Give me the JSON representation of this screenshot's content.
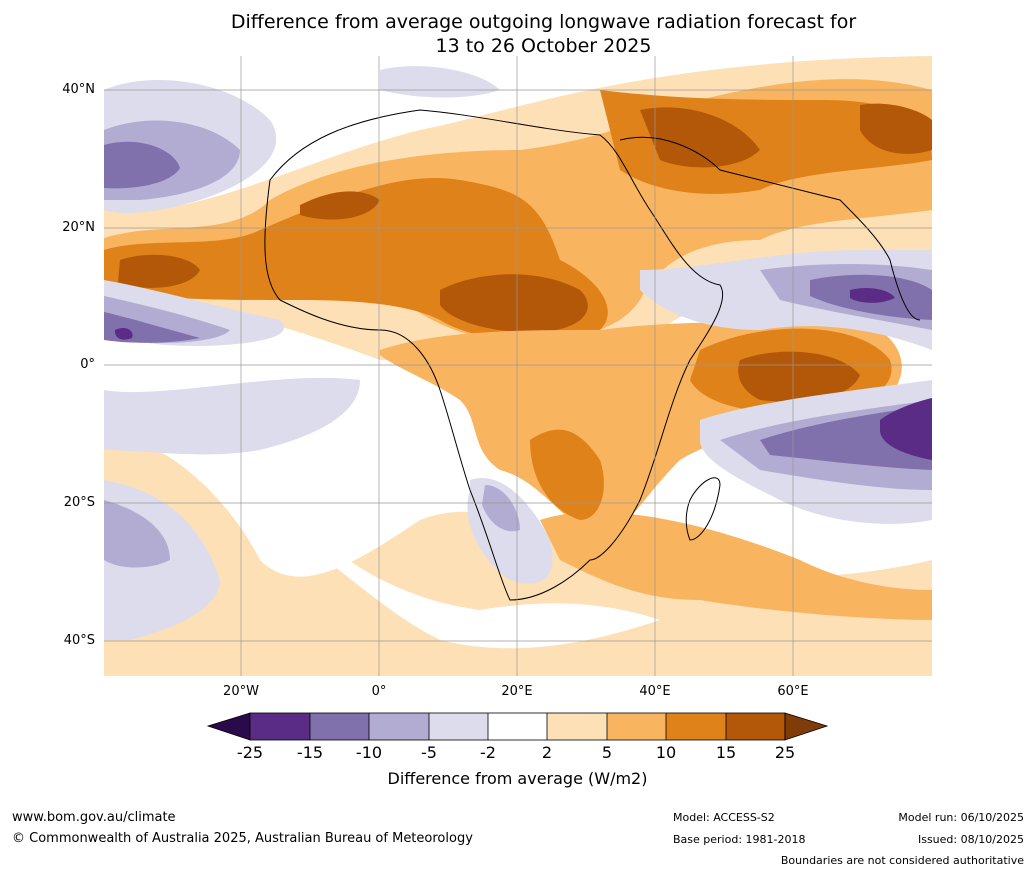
{
  "title": {
    "line1": "Difference from average outgoing longwave radiation forecast for",
    "line2": "13 to 26 October 2025"
  },
  "map": {
    "lat_labels": [
      "40°N",
      "20°N",
      "0°",
      "20°S",
      "40°S"
    ],
    "lon_labels": [
      "20°W",
      "0°",
      "20°E",
      "40°E",
      "60°E"
    ],
    "colors": {
      "lt_-25": "#2a0a4a",
      "-25_-15": "#5a2c86",
      "-15_-10": "#8070ac",
      "-10_-5": "#b2acd2",
      "-5_-2": "#dcdcec",
      "-2_2": "#ffffff",
      "2_5": "#fde0b6",
      "5_10": "#f9b460",
      "10_15": "#e0821a",
      "15_25": "#b35808",
      "gt_25": "#7f3b08"
    }
  },
  "colorbar": {
    "ticks": [
      "-25",
      "-15",
      "-10",
      "-5",
      "-2",
      "2",
      "5",
      "10",
      "15",
      "25"
    ],
    "label": "Difference from average (W/m2)"
  },
  "footer": {
    "website": "www.bom.gov.au/climate",
    "copyright": "© Commonwealth of Australia 2025, Australian Bureau of Meteorology",
    "model": "Model: ACCESS-S2",
    "base_period": "Base period: 1981-2018",
    "model_run": "Model run: 06/10/2025",
    "issued": "Issued: 08/10/2025",
    "disclaimer": "Boundaries are not considered authoritative"
  }
}
